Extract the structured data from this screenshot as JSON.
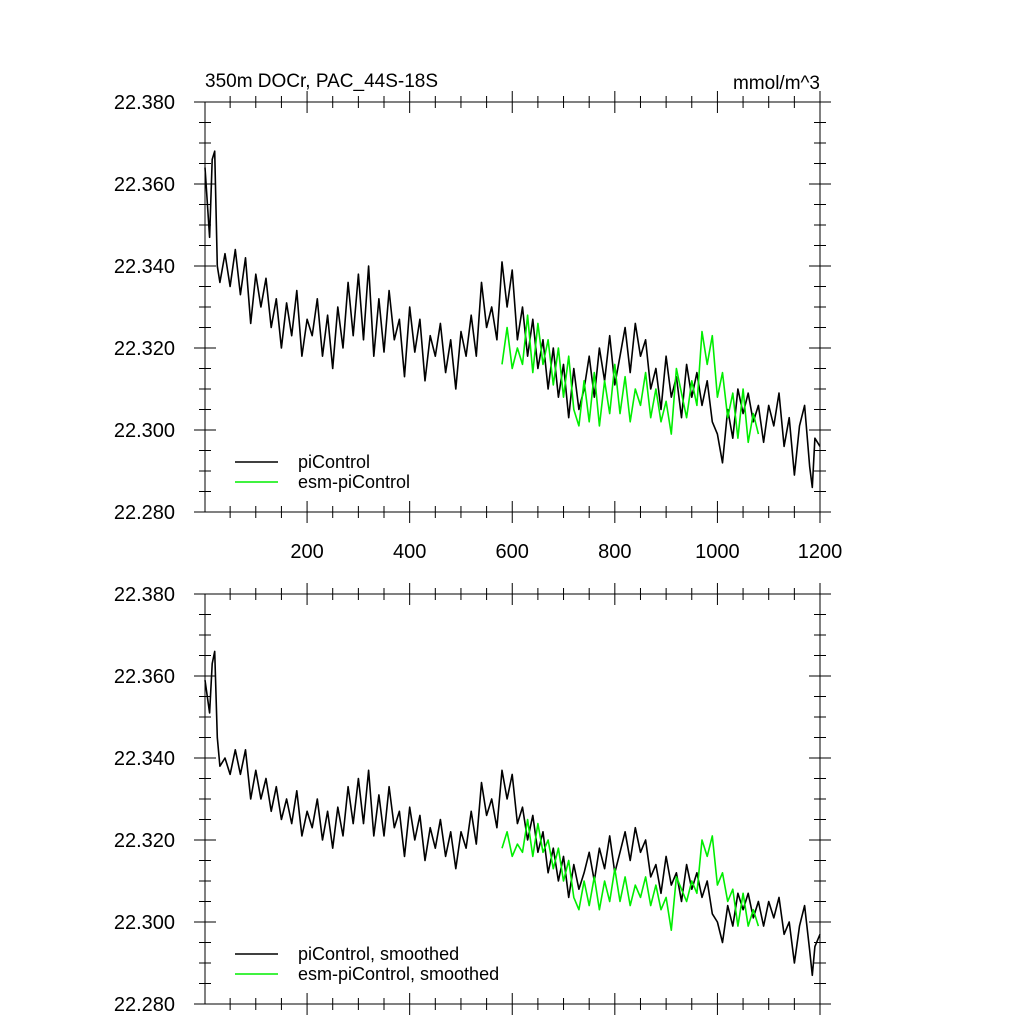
{
  "chart_data": [
    {
      "type": "line",
      "title": "350m DOCr, PAC_44S-18S",
      "units": "mmol/m^3",
      "xlabel": "",
      "ylabel": "",
      "xlim": [
        1,
        1200
      ],
      "ylim": [
        22.28,
        22.38
      ],
      "xticks": [
        200,
        400,
        600,
        800,
        1000,
        1200
      ],
      "xtick_labels": [
        "200",
        "400",
        "600",
        "800",
        "1000",
        "1200"
      ],
      "yticks": [
        22.28,
        22.3,
        22.32,
        22.34,
        22.36,
        22.38
      ],
      "ytick_labels": [
        "22.280",
        "22.300",
        "22.320",
        "22.340",
        "22.360",
        "22.380"
      ],
      "grid": false,
      "legend_position": "bottom-left",
      "series": [
        {
          "name": "piControl",
          "color": "#000000",
          "x": [
            1,
            10,
            15,
            20,
            25,
            30,
            40,
            50,
            60,
            70,
            80,
            90,
            100,
            110,
            120,
            130,
            140,
            150,
            160,
            170,
            180,
            190,
            200,
            210,
            220,
            230,
            240,
            250,
            260,
            270,
            280,
            290,
            300,
            310,
            320,
            330,
            340,
            350,
            360,
            370,
            380,
            390,
            400,
            410,
            420,
            430,
            440,
            450,
            460,
            470,
            480,
            490,
            500,
            510,
            520,
            530,
            540,
            550,
            560,
            570,
            580,
            590,
            600,
            610,
            620,
            630,
            640,
            650,
            660,
            670,
            680,
            690,
            700,
            710,
            720,
            730,
            740,
            750,
            760,
            770,
            780,
            790,
            800,
            810,
            820,
            830,
            840,
            850,
            860,
            870,
            880,
            890,
            900,
            910,
            920,
            930,
            940,
            950,
            960,
            970,
            980,
            990,
            1000,
            1010,
            1020,
            1030,
            1040,
            1050,
            1060,
            1070,
            1080,
            1090,
            1100,
            1110,
            1120,
            1130,
            1140,
            1150,
            1160,
            1170,
            1180,
            1185,
            1190,
            1200
          ],
          "y": [
            22.364,
            22.347,
            22.366,
            22.368,
            22.34,
            22.336,
            22.343,
            22.335,
            22.344,
            22.333,
            22.342,
            22.326,
            22.338,
            22.33,
            22.337,
            22.325,
            22.332,
            22.32,
            22.331,
            22.323,
            22.334,
            22.318,
            22.327,
            22.323,
            22.332,
            22.318,
            22.328,
            22.315,
            22.33,
            22.32,
            22.336,
            22.323,
            22.338,
            22.322,
            22.34,
            22.318,
            22.332,
            22.319,
            22.334,
            22.322,
            22.327,
            22.313,
            22.33,
            22.319,
            22.327,
            22.312,
            22.323,
            22.318,
            22.326,
            22.314,
            22.322,
            22.31,
            22.324,
            22.318,
            22.328,
            22.318,
            22.336,
            22.325,
            22.33,
            22.322,
            22.341,
            22.33,
            22.339,
            22.322,
            22.33,
            22.318,
            22.327,
            22.315,
            22.322,
            22.31,
            22.32,
            22.308,
            22.316,
            22.303,
            22.315,
            22.305,
            22.31,
            22.318,
            22.308,
            22.32,
            22.312,
            22.323,
            22.311,
            22.318,
            22.325,
            22.314,
            22.326,
            22.318,
            22.322,
            22.31,
            22.315,
            22.305,
            22.318,
            22.308,
            22.313,
            22.303,
            22.316,
            22.308,
            22.314,
            22.306,
            22.312,
            22.302,
            22.299,
            22.292,
            22.305,
            22.298,
            22.31,
            22.304,
            22.309,
            22.302,
            22.306,
            22.297,
            22.306,
            22.301,
            22.309,
            22.296,
            22.303,
            22.289,
            22.301,
            22.306,
            22.291,
            22.286,
            22.298,
            22.296
          ]
        },
        {
          "name": "esm-piControl",
          "color": "#00ee00",
          "x": [
            580,
            590,
            600,
            610,
            620,
            630,
            640,
            650,
            660,
            670,
            680,
            690,
            700,
            710,
            720,
            730,
            740,
            750,
            760,
            770,
            780,
            790,
            800,
            810,
            820,
            830,
            840,
            850,
            860,
            870,
            880,
            890,
            900,
            910,
            920,
            930,
            940,
            950,
            960,
            970,
            980,
            990,
            1000,
            1010,
            1020,
            1030,
            1040,
            1050,
            1060,
            1070,
            1080
          ],
          "y": [
            22.316,
            22.325,
            22.315,
            22.32,
            22.316,
            22.328,
            22.314,
            22.326,
            22.316,
            22.322,
            22.311,
            22.32,
            22.308,
            22.318,
            22.305,
            22.301,
            22.312,
            22.302,
            22.314,
            22.301,
            22.312,
            22.304,
            22.316,
            22.304,
            22.313,
            22.302,
            22.31,
            22.306,
            22.314,
            22.303,
            22.31,
            22.302,
            22.307,
            22.299,
            22.315,
            22.309,
            22.303,
            22.312,
            22.306,
            22.324,
            22.316,
            22.323,
            22.308,
            22.314,
            22.303,
            22.309,
            22.298,
            22.31,
            22.297,
            22.304,
            22.299
          ]
        }
      ]
    },
    {
      "type": "line",
      "title": "",
      "xlabel": "",
      "ylabel": "",
      "xlim": [
        1,
        1200
      ],
      "ylim": [
        22.28,
        22.38
      ],
      "xticks": [
        200,
        400,
        600,
        800,
        1000,
        1200
      ],
      "yticks": [
        22.28,
        22.3,
        22.32,
        22.34,
        22.36,
        22.38
      ],
      "ytick_labels": [
        "22.280",
        "22.300",
        "22.320",
        "22.340",
        "22.360",
        "22.380"
      ],
      "grid": false,
      "legend_position": "bottom-left",
      "series": [
        {
          "name": "piControl, smoothed",
          "color": "#000000",
          "x": [
            1,
            10,
            15,
            20,
            25,
            30,
            40,
            50,
            60,
            70,
            80,
            90,
            100,
            110,
            120,
            130,
            140,
            150,
            160,
            170,
            180,
            190,
            200,
            210,
            220,
            230,
            240,
            250,
            260,
            270,
            280,
            290,
            300,
            310,
            320,
            330,
            340,
            350,
            360,
            370,
            380,
            390,
            400,
            410,
            420,
            430,
            440,
            450,
            460,
            470,
            480,
            490,
            500,
            510,
            520,
            530,
            540,
            550,
            560,
            570,
            580,
            590,
            600,
            610,
            620,
            630,
            640,
            650,
            660,
            670,
            680,
            690,
            700,
            710,
            720,
            730,
            740,
            750,
            760,
            770,
            780,
            790,
            800,
            810,
            820,
            830,
            840,
            850,
            860,
            870,
            880,
            890,
            900,
            910,
            920,
            930,
            940,
            950,
            960,
            970,
            980,
            990,
            1000,
            1010,
            1020,
            1030,
            1040,
            1050,
            1060,
            1070,
            1080,
            1090,
            1100,
            1110,
            1120,
            1130,
            1140,
            1150,
            1160,
            1170,
            1180,
            1185,
            1190,
            1200
          ],
          "y": [
            22.359,
            22.351,
            22.363,
            22.366,
            22.345,
            22.338,
            22.34,
            22.336,
            22.342,
            22.336,
            22.342,
            22.33,
            22.337,
            22.33,
            22.335,
            22.327,
            22.333,
            22.325,
            22.33,
            22.324,
            22.332,
            22.321,
            22.327,
            22.323,
            22.33,
            22.32,
            22.327,
            22.318,
            22.328,
            22.321,
            22.333,
            22.324,
            22.335,
            22.324,
            22.337,
            22.321,
            22.331,
            22.321,
            22.333,
            22.323,
            22.327,
            22.316,
            22.328,
            22.32,
            22.326,
            22.315,
            22.323,
            22.318,
            22.325,
            22.316,
            22.322,
            22.313,
            22.322,
            22.318,
            22.327,
            22.319,
            22.334,
            22.326,
            22.33,
            22.323,
            22.337,
            22.33,
            22.336,
            22.324,
            22.328,
            22.32,
            22.326,
            22.317,
            22.322,
            22.312,
            22.318,
            22.31,
            22.316,
            22.306,
            22.314,
            22.308,
            22.312,
            22.317,
            22.31,
            22.318,
            22.313,
            22.321,
            22.312,
            22.317,
            22.322,
            22.315,
            22.323,
            22.317,
            22.32,
            22.311,
            22.314,
            22.307,
            22.316,
            22.309,
            22.312,
            22.305,
            22.314,
            22.308,
            22.312,
            22.306,
            22.31,
            22.302,
            22.3,
            22.295,
            22.304,
            22.299,
            22.307,
            22.303,
            22.307,
            22.301,
            22.305,
            22.299,
            22.305,
            22.301,
            22.306,
            22.297,
            22.3,
            22.29,
            22.299,
            22.304,
            22.293,
            22.287,
            22.294,
            22.297
          ]
        },
        {
          "name": "esm-piControl, smoothed",
          "color": "#00ee00",
          "x": [
            580,
            590,
            600,
            610,
            620,
            630,
            640,
            650,
            660,
            670,
            680,
            690,
            700,
            710,
            720,
            730,
            740,
            750,
            760,
            770,
            780,
            790,
            800,
            810,
            820,
            830,
            840,
            850,
            860,
            870,
            880,
            890,
            900,
            910,
            920,
            930,
            940,
            950,
            960,
            970,
            980,
            990,
            1000,
            1010,
            1020,
            1030,
            1040,
            1050,
            1060,
            1070,
            1080
          ],
          "y": [
            22.318,
            22.322,
            22.316,
            22.319,
            22.317,
            22.325,
            22.316,
            22.324,
            22.317,
            22.32,
            22.313,
            22.318,
            22.31,
            22.315,
            22.306,
            22.303,
            22.31,
            22.304,
            22.311,
            22.303,
            22.31,
            22.305,
            22.313,
            22.305,
            22.311,
            22.304,
            22.309,
            22.306,
            22.311,
            22.304,
            22.309,
            22.303,
            22.306,
            22.298,
            22.311,
            22.308,
            22.305,
            22.31,
            22.307,
            22.32,
            22.316,
            22.321,
            22.309,
            22.312,
            22.305,
            22.308,
            22.299,
            22.307,
            22.299,
            22.303,
            22.299
          ]
        }
      ]
    }
  ]
}
